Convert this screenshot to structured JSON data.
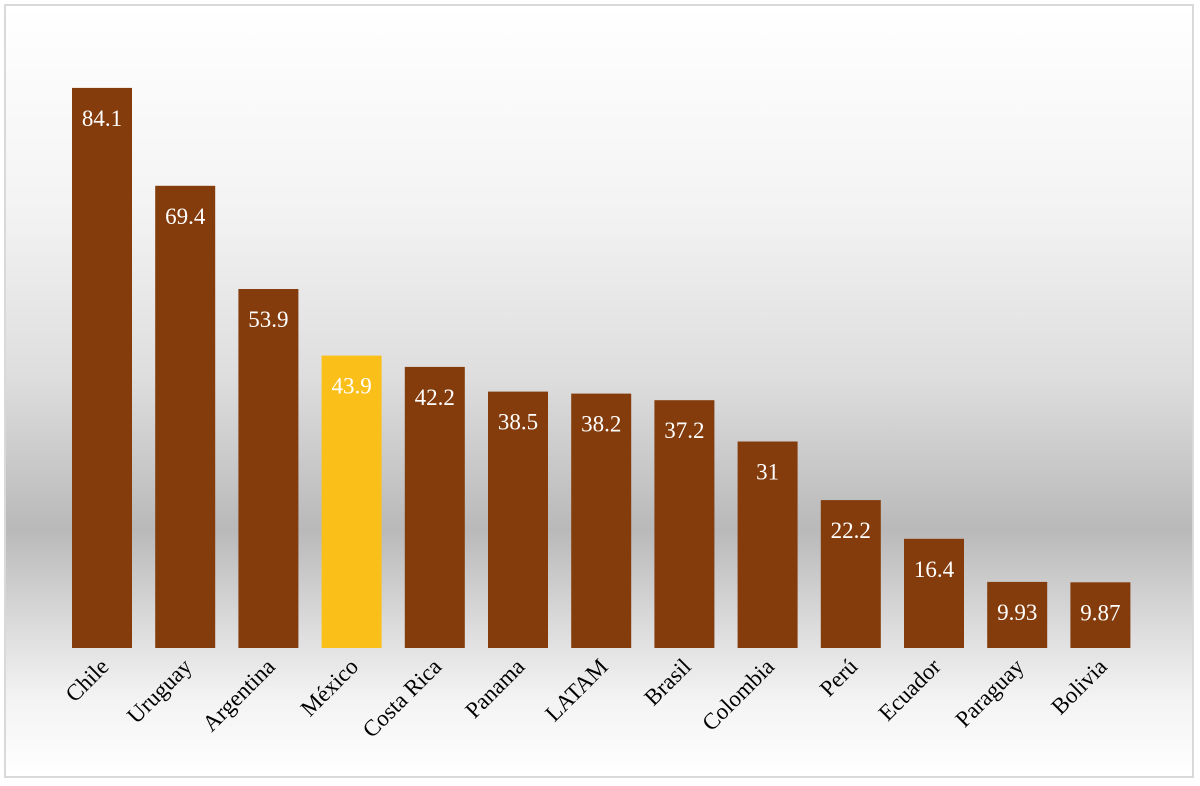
{
  "chart_data": {
    "type": "bar",
    "categories": [
      "Chile",
      "Uruguay",
      "Argentina",
      "México",
      "Costa Rica",
      "Panama",
      "LATAM",
      "Brasil",
      "Colombia",
      "Perú",
      "Ecuador",
      "Paraguay",
      "Bolivia"
    ],
    "values": [
      84.1,
      69.4,
      53.9,
      43.9,
      42.2,
      38.5,
      38.2,
      37.2,
      31,
      22.2,
      16.4,
      9.93,
      9.87
    ],
    "data_labels": [
      "84.1",
      "69.4",
      "53.9",
      "43.9",
      "42.2",
      "38.5",
      "38.2",
      "37.2",
      "31",
      "22.2",
      "16.4",
      "9.93",
      "9.87"
    ],
    "highlight_category": "México",
    "title": "",
    "xlabel": "",
    "ylabel": "",
    "ylim": [
      0,
      90
    ],
    "grid": false,
    "legend": "none",
    "colors": {
      "bar": "#843C0C",
      "highlight": "#FBBF1A",
      "data_label": "#FFFFFF",
      "tick_label": "#000000"
    }
  }
}
